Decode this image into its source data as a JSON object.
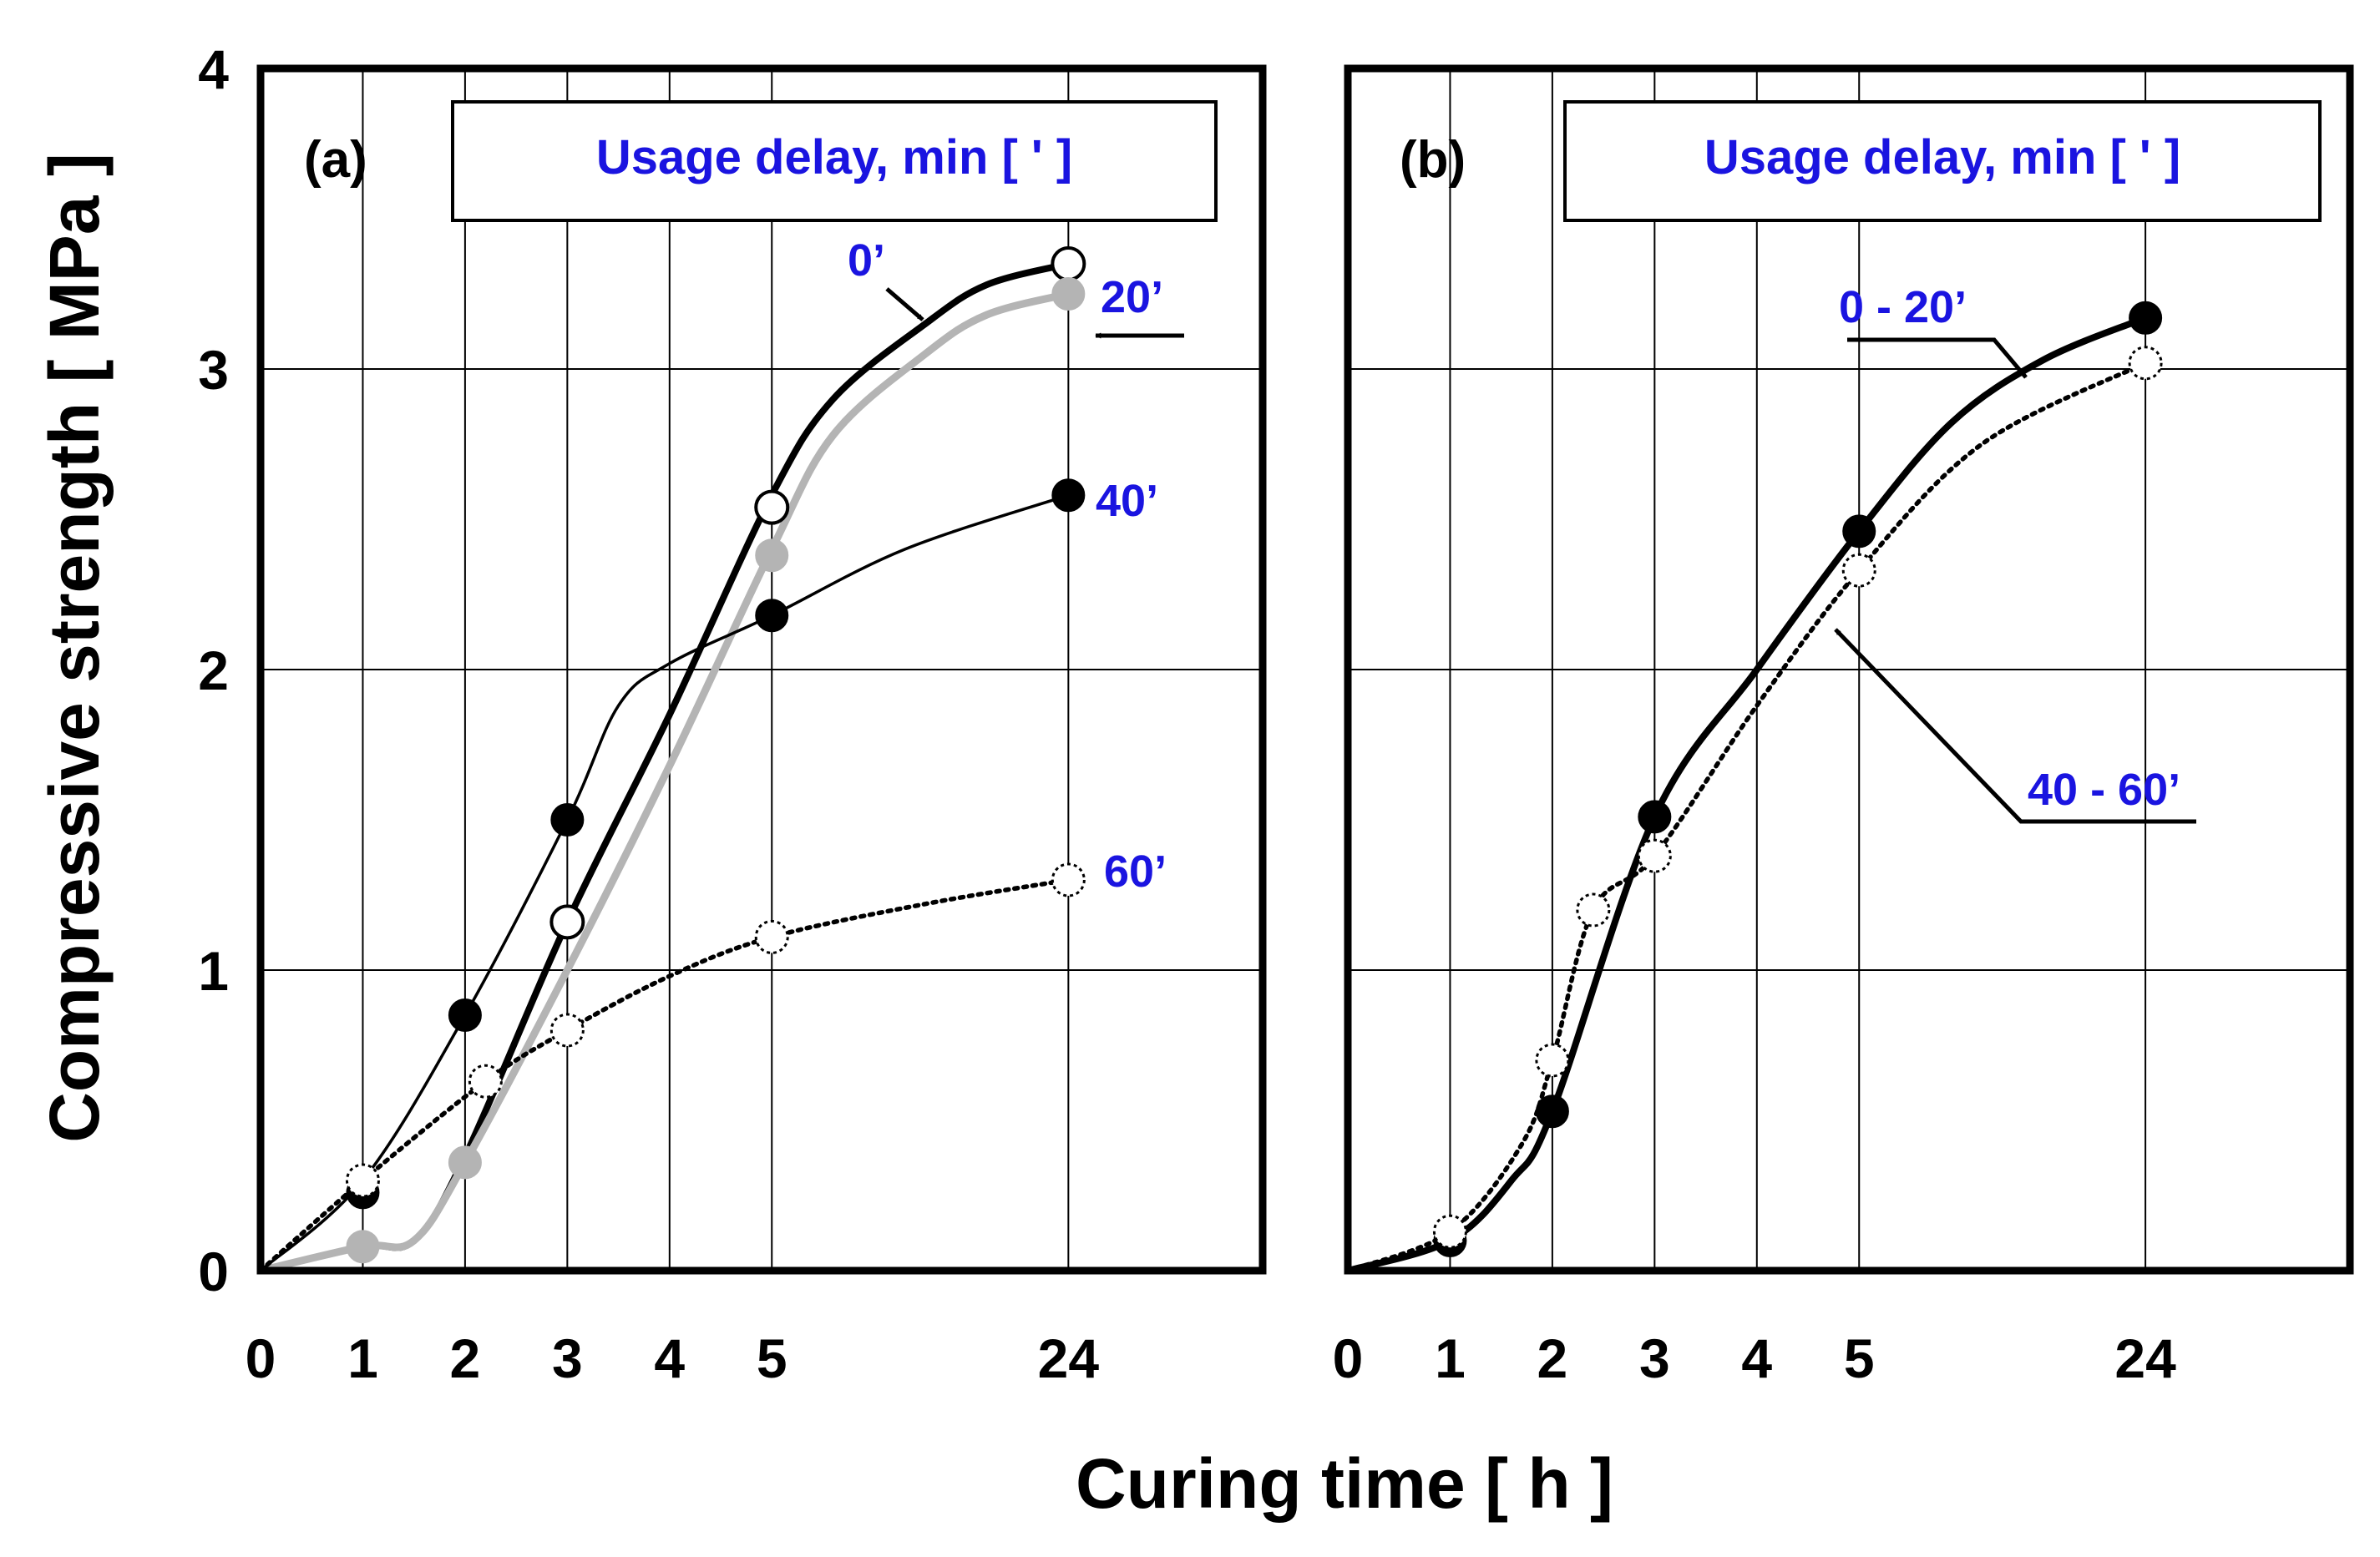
{
  "figure": {
    "y_axis_label": "Compressive strength [ MPa ]",
    "x_axis_label": "Curing time [ h ]"
  },
  "colors": {
    "annotation": "#1a14e0",
    "black": "#000000",
    "grey_series": "#b4b4b4",
    "grid": "#000000"
  },
  "chart_data": [
    {
      "type": "line",
      "panel_label": "(a)",
      "legend_title": "Usage delay, min [ ' ]",
      "x_ticks": [
        "0",
        "1",
        "2",
        "3",
        "4",
        "5",
        "24"
      ],
      "x_tick_positions": [
        0,
        1,
        2,
        3,
        4,
        5,
        7.9
      ],
      "y_ticks": [
        "0",
        "1",
        "2",
        "3",
        "4"
      ],
      "xlim": [
        0,
        9.8
      ],
      "ylim": [
        0,
        4
      ],
      "xlabel": "Curing time [ h ]",
      "ylabel": "Compressive strength [ MPa ]",
      "grid": true,
      "series": [
        {
          "name": "0'",
          "label": "0’",
          "marker": "open-circle",
          "line": "thick-solid",
          "markers": [
            {
              "x": 3,
              "y": 1.16
            },
            {
              "x": 5,
              "y": 2.54
            },
            {
              "x": 7.9,
              "y": 3.35
            }
          ],
          "curve": [
            {
              "x": 0,
              "y": 0
            },
            {
              "x": 1,
              "y": 0.08
            },
            {
              "x": 1.5,
              "y": 0.1
            },
            {
              "x": 2,
              "y": 0.38
            },
            {
              "x": 3,
              "y": 1.16
            },
            {
              "x": 4,
              "y": 1.85
            },
            {
              "x": 5,
              "y": 2.58
            },
            {
              "x": 5.6,
              "y": 2.9
            },
            {
              "x": 6.5,
              "y": 3.15
            },
            {
              "x": 7.1,
              "y": 3.28
            },
            {
              "x": 7.9,
              "y": 3.35
            }
          ]
        },
        {
          "name": "20'",
          "label": "20’",
          "marker": "grey-circle",
          "line": "thick-grey",
          "markers": [
            {
              "x": 1,
              "y": 0.08
            },
            {
              "x": 2,
              "y": 0.36
            },
            {
              "x": 5,
              "y": 2.38
            },
            {
              "x": 7.9,
              "y": 3.25
            }
          ],
          "curve": [
            {
              "x": 0,
              "y": 0
            },
            {
              "x": 1,
              "y": 0.08
            },
            {
              "x": 1.5,
              "y": 0.1
            },
            {
              "x": 2,
              "y": 0.36
            },
            {
              "x": 3,
              "y": 1.0
            },
            {
              "x": 4,
              "y": 1.68
            },
            {
              "x": 5,
              "y": 2.4
            },
            {
              "x": 5.6,
              "y": 2.78
            },
            {
              "x": 6.5,
              "y": 3.05
            },
            {
              "x": 7.1,
              "y": 3.18
            },
            {
              "x": 7.9,
              "y": 3.25
            }
          ]
        },
        {
          "name": "40'",
          "label": "40’",
          "marker": "filled-circle",
          "line": "thin-solid",
          "markers": [
            {
              "x": 1,
              "y": 0.26
            },
            {
              "x": 2,
              "y": 0.85
            },
            {
              "x": 3,
              "y": 1.5
            },
            {
              "x": 5,
              "y": 2.18
            },
            {
              "x": 7.9,
              "y": 2.58
            }
          ],
          "curve": [
            {
              "x": 0,
              "y": 0
            },
            {
              "x": 1,
              "y": 0.3
            },
            {
              "x": 2,
              "y": 0.85
            },
            {
              "x": 3,
              "y": 1.5
            },
            {
              "x": 3.5,
              "y": 1.88
            },
            {
              "x": 4,
              "y": 2.02
            },
            {
              "x": 5,
              "y": 2.18
            },
            {
              "x": 6.3,
              "y": 2.4
            },
            {
              "x": 7.9,
              "y": 2.58
            }
          ]
        },
        {
          "name": "60'",
          "label": "60’",
          "marker": "dotted-circle",
          "line": "dotted",
          "markers": [
            {
              "x": 1,
              "y": 0.3
            },
            {
              "x": 2.2,
              "y": 0.63
            },
            {
              "x": 3,
              "y": 0.8
            },
            {
              "x": 5,
              "y": 1.11
            },
            {
              "x": 7.9,
              "y": 1.3
            }
          ],
          "curve": [
            {
              "x": 0,
              "y": 0
            },
            {
              "x": 1,
              "y": 0.3
            },
            {
              "x": 2.2,
              "y": 0.63
            },
            {
              "x": 3,
              "y": 0.8
            },
            {
              "x": 4,
              "y": 0.98
            },
            {
              "x": 5,
              "y": 1.11
            },
            {
              "x": 6.5,
              "y": 1.22
            },
            {
              "x": 7.9,
              "y": 1.3
            }
          ]
        }
      ]
    },
    {
      "type": "line",
      "panel_label": "(b)",
      "legend_title": "Usage delay, min [ ' ]",
      "x_ticks": [
        "0",
        "1",
        "2",
        "3",
        "4",
        "5",
        "24"
      ],
      "x_tick_positions": [
        0,
        1,
        2,
        3,
        4,
        5,
        7.8
      ],
      "y_ticks": [
        "0",
        "1",
        "2",
        "3",
        "4"
      ],
      "xlim": [
        0,
        9.8
      ],
      "ylim": [
        0,
        4
      ],
      "xlabel": "Curing time [ h ]",
      "ylabel": "Compressive strength [ MPa ]",
      "grid": true,
      "series": [
        {
          "name": "0 - 20'",
          "label": "0 - 20’",
          "marker": "filled-circle",
          "line": "thick-solid",
          "markers": [
            {
              "x": 1,
              "y": 0.1
            },
            {
              "x": 2,
              "y": 0.53
            },
            {
              "x": 3,
              "y": 1.51
            },
            {
              "x": 5,
              "y": 2.46
            },
            {
              "x": 7.8,
              "y": 3.17
            }
          ],
          "curve": [
            {
              "x": 0,
              "y": 0
            },
            {
              "x": 1,
              "y": 0.1
            },
            {
              "x": 1.6,
              "y": 0.3
            },
            {
              "x": 2,
              "y": 0.53
            },
            {
              "x": 3,
              "y": 1.51
            },
            {
              "x": 4,
              "y": 2.0
            },
            {
              "x": 5,
              "y": 2.46
            },
            {
              "x": 5.9,
              "y": 2.82
            },
            {
              "x": 6.8,
              "y": 3.03
            },
            {
              "x": 7.8,
              "y": 3.17
            }
          ]
        },
        {
          "name": "40 - 60'",
          "label": "40 - 60’",
          "marker": "dotted-circle",
          "line": "dotted",
          "markers": [
            {
              "x": 1,
              "y": 0.13
            },
            {
              "x": 2,
              "y": 0.7
            },
            {
              "x": 2.4,
              "y": 1.2
            },
            {
              "x": 3,
              "y": 1.38
            },
            {
              "x": 5,
              "y": 2.33
            },
            {
              "x": 7.8,
              "y": 3.02
            }
          ],
          "curve": [
            {
              "x": 0,
              "y": 0
            },
            {
              "x": 1,
              "y": 0.13
            },
            {
              "x": 1.7,
              "y": 0.42
            },
            {
              "x": 2,
              "y": 0.7
            },
            {
              "x": 2.4,
              "y": 1.2
            },
            {
              "x": 3,
              "y": 1.38
            },
            {
              "x": 4,
              "y": 1.88
            },
            {
              "x": 5,
              "y": 2.33
            },
            {
              "x": 6.2,
              "y": 2.75
            },
            {
              "x": 7.8,
              "y": 3.02
            }
          ]
        }
      ]
    }
  ]
}
